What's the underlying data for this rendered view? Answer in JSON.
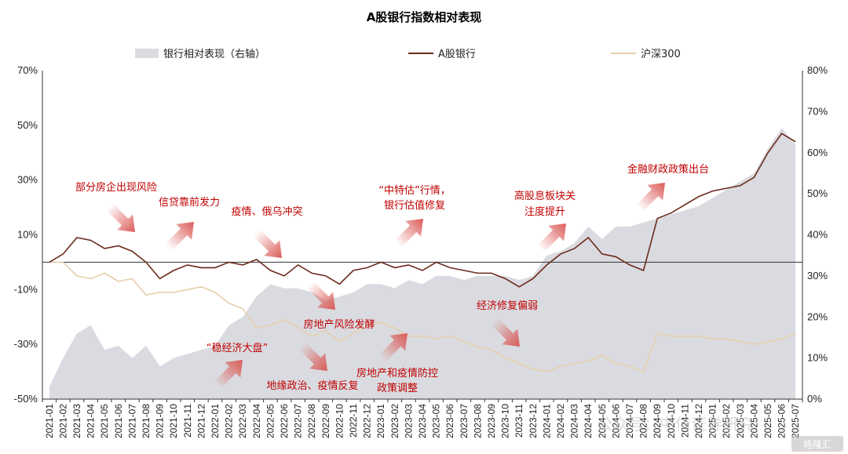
{
  "chart_data": {
    "type": "line",
    "title": "A股银行指数相对表现",
    "legend": {
      "placement": "top",
      "entries": [
        {
          "name": "银行相对表现（右轴）",
          "style": "area",
          "color": "#dadbe0"
        },
        {
          "name": "A股银行",
          "style": "line",
          "color": "#6b2a1c"
        },
        {
          "name": "沪深300",
          "style": "line",
          "color": "#e6cfad"
        }
      ]
    },
    "y_left": {
      "min": -50,
      "max": 70,
      "ticks": [
        "70%",
        "50%",
        "30%",
        "10%",
        "-10%",
        "-30%",
        "-50%"
      ]
    },
    "y_right": {
      "min": 0,
      "max": 80,
      "ticks": [
        "80%",
        "70%",
        "60%",
        "50%",
        "40%",
        "30%",
        "20%",
        "10%",
        "0%"
      ]
    },
    "x_labels": [
      "2021-01",
      "2021-02",
      "2021-03",
      "2021-04",
      "2021-05",
      "2021-06",
      "2021-07",
      "2021-08",
      "2021-09",
      "2021-10",
      "2021-11",
      "2021-12",
      "2022-01",
      "2022-02",
      "2022-03",
      "2022-04",
      "2022-05",
      "2022-06",
      "2022-07",
      "2022-08",
      "2022-09",
      "2022-10",
      "2022-11",
      "2022-12",
      "2023-01",
      "2023-02",
      "2023-03",
      "2023-04",
      "2023-05",
      "2023-06",
      "2023-07",
      "2023-08",
      "2023-09",
      "2023-10",
      "2023-11",
      "2023-12",
      "2024-01",
      "2024-02",
      "2024-03",
      "2024-04",
      "2024-05",
      "2024-06",
      "2024-07",
      "2024-08",
      "2024-09",
      "2024-10",
      "2024-11",
      "2024-12",
      "2025-01",
      "2025-02",
      "2025-03",
      "2025-04",
      "2025-05",
      "2025-06",
      "2025-07"
    ],
    "series": [
      {
        "name": "A股银行",
        "axis": "left",
        "values": [
          0,
          3,
          9,
          8,
          5,
          6,
          4,
          0,
          -6,
          -3,
          -1,
          -2,
          -2,
          0,
          -1,
          1,
          -3,
          -5,
          -1,
          -4,
          -5,
          -8,
          -3,
          -2,
          0,
          -2,
          -1,
          -3,
          0,
          -2,
          -3,
          -4,
          -4,
          -6,
          -9,
          -6,
          -1,
          3,
          5,
          9,
          3,
          2,
          -1,
          -3,
          16,
          18,
          21,
          24,
          26,
          27,
          28,
          31,
          40,
          47,
          44
        ]
      },
      {
        "name": "沪深300",
        "axis": "left",
        "values": [
          0,
          0,
          -5,
          -6,
          -4,
          -7,
          -6,
          -12,
          -11,
          -11,
          -10,
          -9,
          -11,
          -15,
          -17,
          -24,
          -23,
          -21,
          -24,
          -27,
          -25,
          -29,
          -26,
          -23,
          -22,
          -24,
          -27,
          -27,
          -28,
          -27,
          -29,
          -31,
          -32,
          -35,
          -37,
          -39,
          -40,
          -38,
          -37,
          -36,
          -34,
          -37,
          -38,
          -40,
          -26,
          -27,
          -27,
          -27,
          -28,
          -28,
          -29,
          -30,
          -29,
          -28,
          -26
        ]
      },
      {
        "name": "银行相对表现（右轴）",
        "axis": "right",
        "type": "area",
        "values": [
          3,
          10,
          16,
          18,
          12,
          13,
          10,
          13,
          8,
          10,
          11,
          12,
          13,
          18,
          20,
          25,
          28,
          27,
          27,
          26,
          24,
          25,
          26,
          28,
          28,
          27,
          29,
          28,
          30,
          30,
          29,
          30,
          30,
          30,
          29,
          30,
          35,
          36,
          38,
          42,
          39,
          42,
          42,
          43,
          44,
          45,
          46,
          47,
          49,
          51,
          53,
          55,
          61,
          66,
          62
        ]
      }
    ],
    "annotations": [
      {
        "text": "部分房企出现风险",
        "arrow": "down"
      },
      {
        "text": "信贷靠前发力",
        "arrow": "up"
      },
      {
        "text": "疫情、俄乌冲突",
        "arrow": "down"
      },
      {
        "text": "“稳经济大盘”",
        "arrow": "up"
      },
      {
        "text": "房地产风险发酵",
        "arrow": "down"
      },
      {
        "text": "地缘政治、疫情反复",
        "arrow": "down"
      },
      {
        "text": "房地产和疫情防控",
        "arrow": "up"
      },
      {
        "text": "政策调整",
        "arrow": "none"
      },
      {
        "text": "“中特估”行情，",
        "arrow": "none"
      },
      {
        "text": "银行估值修复",
        "arrow": "up"
      },
      {
        "text": "经济修复偏弱",
        "arrow": "down"
      },
      {
        "text": "高股息板块关",
        "arrow": "none"
      },
      {
        "text": "注度提升",
        "arrow": "up"
      },
      {
        "text": "金融财政政策出台",
        "arrow": "up"
      }
    ],
    "grid": false
  },
  "watermarks": {
    "main": "公众号：中信证券研究",
    "corner": "格隆汇"
  }
}
